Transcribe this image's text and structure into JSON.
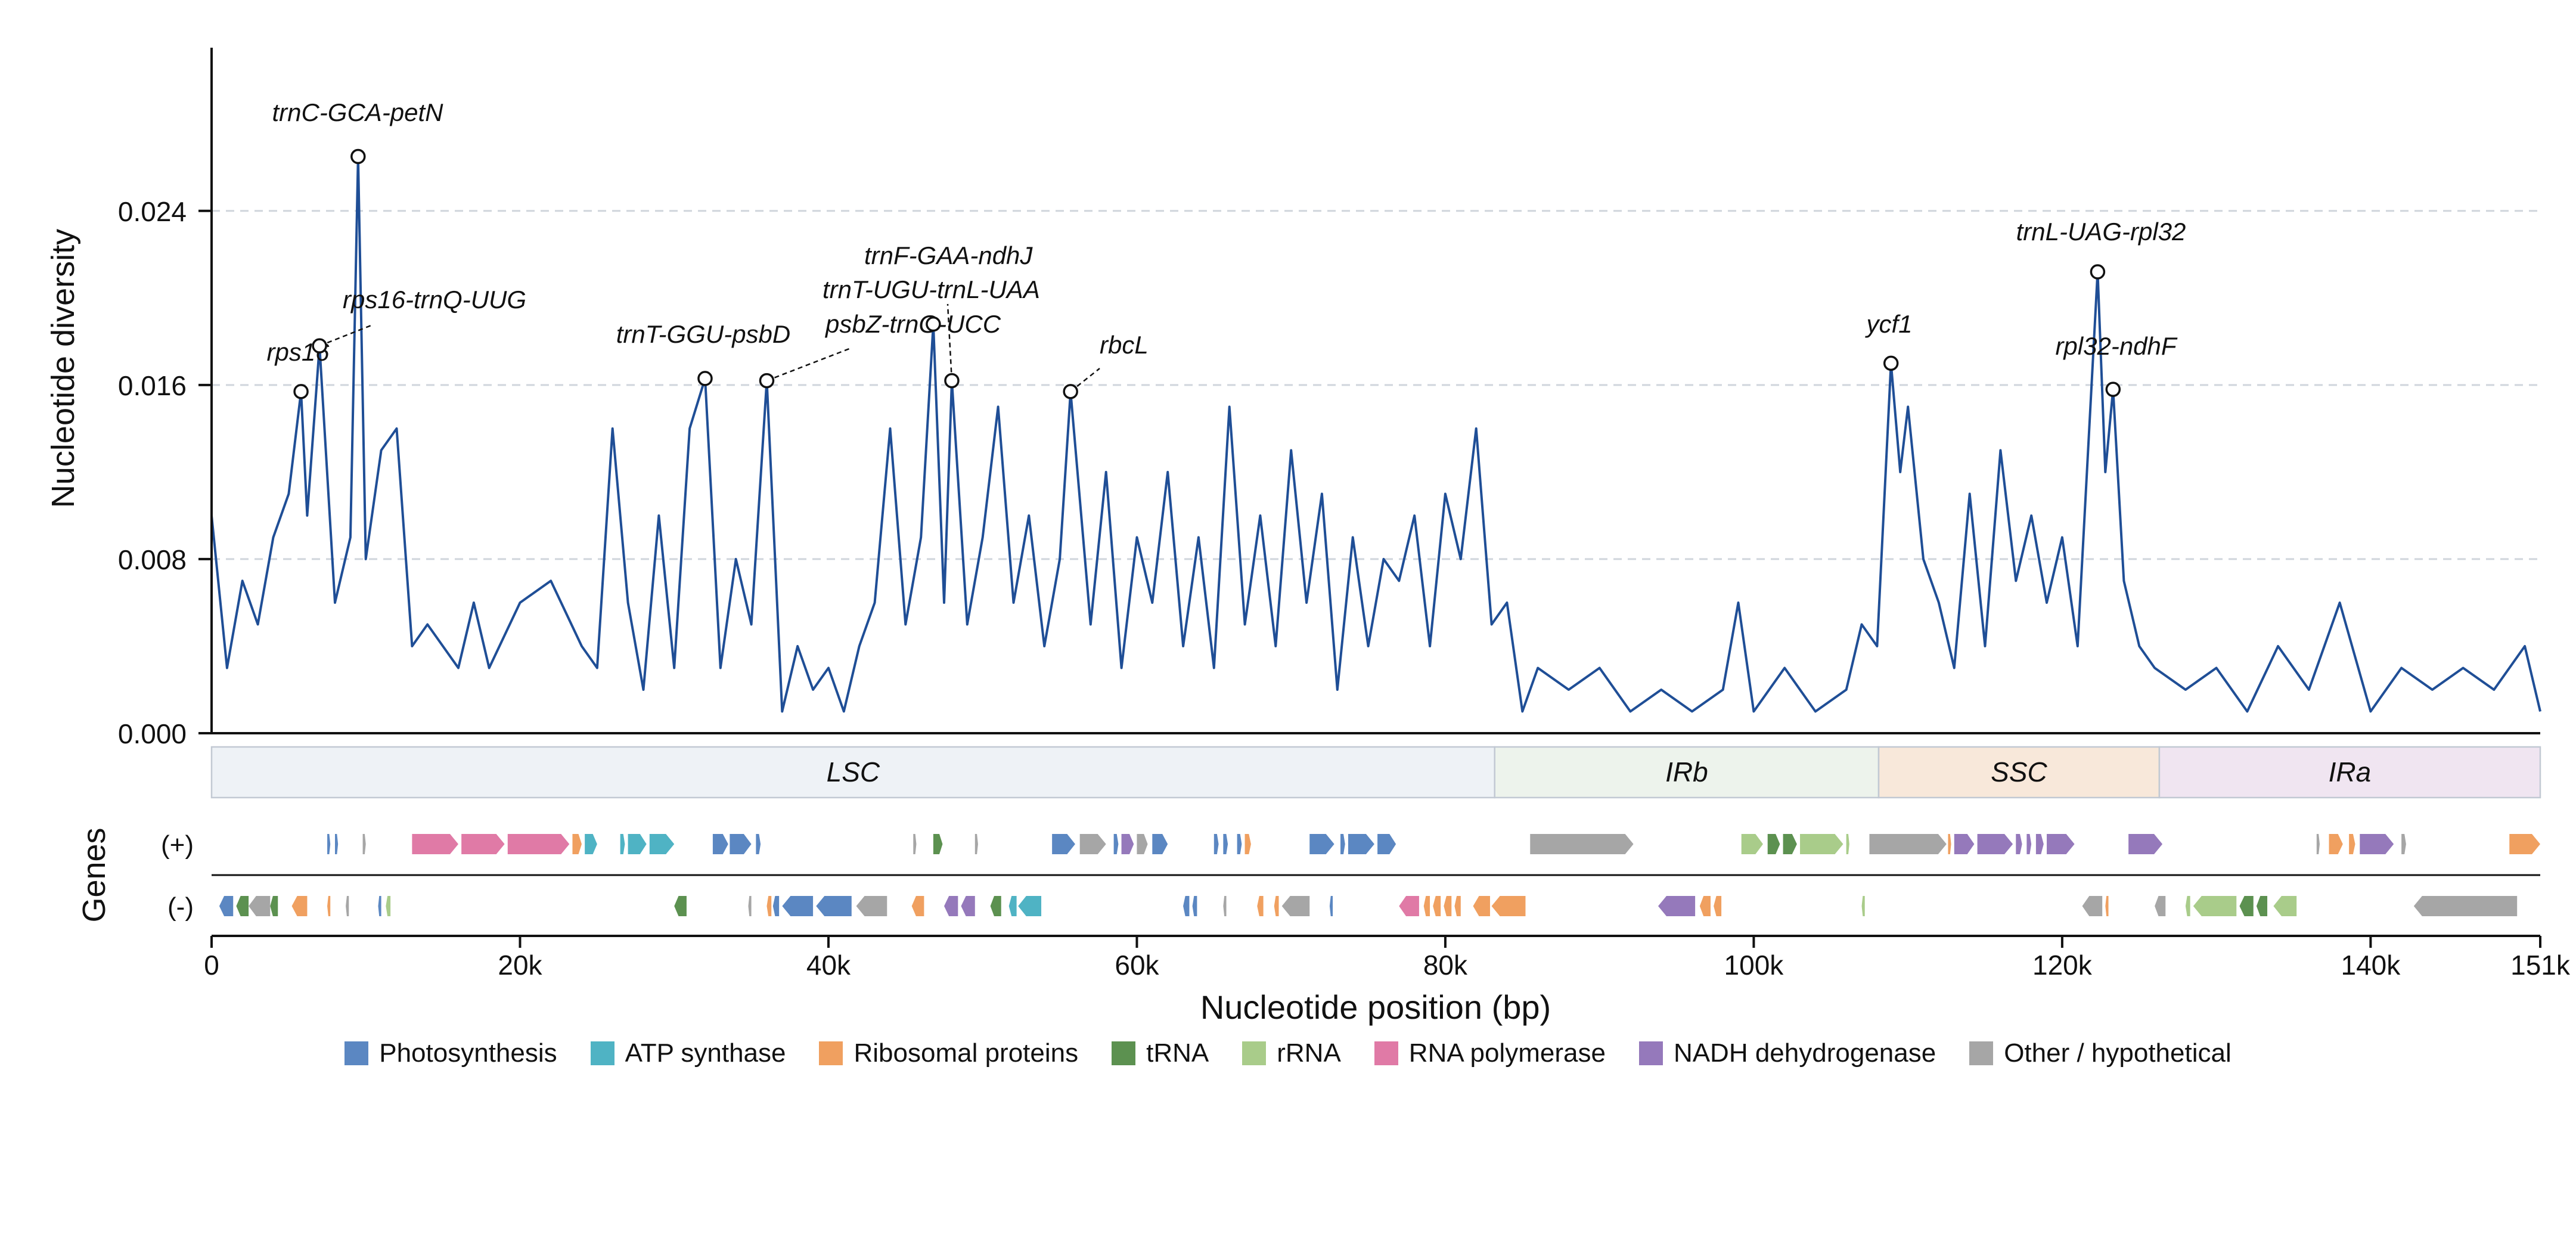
{
  "chart_data": {
    "type": "line",
    "ylabel": "Nucleotide diversity",
    "xlabel": "Nucleotide position (bp)",
    "genes_label": "Genes",
    "ylim": [
      0,
      0.0315
    ],
    "xlim": [
      0,
      151000
    ],
    "yticks": [
      0.0,
      0.008,
      0.016,
      0.024
    ],
    "ytick_labels": [
      "0.000",
      "0.008",
      "0.016",
      "0.024"
    ],
    "xticks": [
      0,
      20000,
      40000,
      60000,
      80000,
      100000,
      120000,
      140000,
      151000
    ],
    "xtick_labels": [
      "0",
      "20k",
      "40k",
      "60k",
      "80k",
      "100k",
      "120k",
      "140k",
      "151k"
    ],
    "grid": "horizontal dashed",
    "colors": {
      "line": "#1f4e96",
      "Photosynthesis": "#5b87c2",
      "ATP synthase": "#4fb3c4",
      "Ribosomal proteins": "#f0a060",
      "tRNA": "#5c9150",
      "rRNA": "#a9cc8a",
      "RNA polymerase": "#e07aa6",
      "NADH dehydrogenase": "#9579bb",
      "Other / hypothetical": "#a6a6a6"
    },
    "series": [
      {
        "name": "",
        "x": [
          0,
          1000,
          2000,
          3000,
          4000,
          5000,
          5800,
          6200,
          7000,
          8000,
          9000,
          9500,
          10000,
          11000,
          12000,
          13000,
          14000,
          16000,
          17000,
          18000,
          20000,
          22000,
          24000,
          25000,
          26000,
          27000,
          28000,
          29000,
          30000,
          31000,
          32000,
          33000,
          34000,
          35000,
          36000,
          37000,
          38000,
          39000,
          40000,
          41000,
          42000,
          43000,
          44000,
          45000,
          46000,
          46800,
          47500,
          48000,
          49000,
          50000,
          51000,
          52000,
          53000,
          54000,
          55000,
          55700,
          57000,
          58000,
          59000,
          60000,
          61000,
          62000,
          63000,
          64000,
          65000,
          66000,
          67000,
          68000,
          69000,
          70000,
          71000,
          72000,
          73000,
          74000,
          75000,
          76000,
          77000,
          78000,
          79000,
          80000,
          81000,
          82000,
          83000,
          84000,
          85000,
          86000,
          88000,
          90000,
          92000,
          94000,
          96000,
          98000,
          99000,
          100000,
          102000,
          104000,
          106000,
          107000,
          108000,
          108900,
          109500,
          110000,
          111000,
          112000,
          113000,
          114000,
          115000,
          116000,
          117000,
          118000,
          119000,
          120000,
          121000,
          122300,
          122800,
          123300,
          124000,
          125000,
          126000,
          128000,
          130000,
          132000,
          134000,
          136000,
          138000,
          140000,
          142000,
          144000,
          146000,
          148000,
          150000,
          151000
        ],
        "values": [
          0.01,
          0.003,
          0.007,
          0.005,
          0.009,
          0.011,
          0.0157,
          0.01,
          0.0178,
          0.006,
          0.009,
          0.0265,
          0.008,
          0.013,
          0.014,
          0.004,
          0.005,
          0.003,
          0.006,
          0.003,
          0.006,
          0.007,
          0.004,
          0.003,
          0.014,
          0.006,
          0.002,
          0.01,
          0.003,
          0.014,
          0.0163,
          0.003,
          0.008,
          0.005,
          0.0162,
          0.001,
          0.004,
          0.002,
          0.003,
          0.001,
          0.004,
          0.006,
          0.014,
          0.005,
          0.009,
          0.0188,
          0.006,
          0.0162,
          0.005,
          0.009,
          0.015,
          0.006,
          0.01,
          0.004,
          0.008,
          0.0157,
          0.005,
          0.012,
          0.003,
          0.009,
          0.006,
          0.012,
          0.004,
          0.009,
          0.003,
          0.015,
          0.005,
          0.01,
          0.004,
          0.013,
          0.006,
          0.011,
          0.002,
          0.009,
          0.004,
          0.008,
          0.007,
          0.01,
          0.004,
          0.011,
          0.008,
          0.014,
          0.005,
          0.006,
          0.001,
          0.003,
          0.002,
          0.003,
          0.001,
          0.002,
          0.001,
          0.002,
          0.006,
          0.001,
          0.003,
          0.001,
          0.002,
          0.005,
          0.004,
          0.017,
          0.012,
          0.015,
          0.008,
          0.006,
          0.003,
          0.011,
          0.004,
          0.013,
          0.007,
          0.01,
          0.006,
          0.009,
          0.004,
          0.0212,
          0.012,
          0.0158,
          0.007,
          0.004,
          0.003,
          0.002,
          0.003,
          0.001,
          0.004,
          0.002,
          0.006,
          0.001,
          0.003,
          0.002,
          0.003,
          0.002,
          0.004,
          0.001
        ]
      }
    ],
    "annotations": [
      {
        "label": "rps16",
        "x": 5800,
        "y": 0.0157
      },
      {
        "label": "rps16-trnQ-UUG",
        "x": 7000,
        "y": 0.0178
      },
      {
        "label": "trnC-GCA-petN",
        "x": 9500,
        "y": 0.0265
      },
      {
        "label": "trnT-GGU-psbD",
        "x": 32000,
        "y": 0.0163
      },
      {
        "label": "psbZ-trnG-UCC",
        "x": 36000,
        "y": 0.0162
      },
      {
        "label": "trnF-GAA-ndhJ",
        "x": 46800,
        "y": 0.0188
      },
      {
        "label": "trnT-UGU-trnL-UAA",
        "x": 48000,
        "y": 0.0162
      },
      {
        "label": "rbcL",
        "x": 55700,
        "y": 0.0157
      },
      {
        "label": "ycf1",
        "x": 108900,
        "y": 0.017
      },
      {
        "label": "trnL-UAG-rpl32",
        "x": 122300,
        "y": 0.0212
      },
      {
        "label": "rpl32-ndhF",
        "x": 123300,
        "y": 0.0158
      }
    ],
    "regions": [
      {
        "label": "LSC",
        "start": 0,
        "end": 83200,
        "color": "#eef2f6"
      },
      {
        "label": "IRb",
        "start": 83200,
        "end": 108100,
        "color": "#edf3ec"
      },
      {
        "label": "SSC",
        "start": 108100,
        "end": 126300,
        "color": "#f8e8da"
      },
      {
        "label": "IRa",
        "start": 126300,
        "end": 151000,
        "color": "#f0e5f1"
      }
    ],
    "strand_labels": [
      "(+)",
      "(-)"
    ],
    "genes_plus": [
      {
        "start": 7500,
        "end": 7700,
        "cat": "Photosynthesis"
      },
      {
        "start": 8000,
        "end": 8200,
        "cat": "Photosynthesis"
      },
      {
        "start": 9800,
        "end": 10000,
        "cat": "Other / hypothetical"
      },
      {
        "start": 13000,
        "end": 16000,
        "cat": "RNA polymerase"
      },
      {
        "start": 16200,
        "end": 19000,
        "cat": "RNA polymerase"
      },
      {
        "start": 19200,
        "end": 23200,
        "cat": "RNA polymerase"
      },
      {
        "start": 23400,
        "end": 24000,
        "cat": "Ribosomal proteins"
      },
      {
        "start": 24200,
        "end": 25000,
        "cat": "ATP synthase"
      },
      {
        "start": 26500,
        "end": 26800,
        "cat": "ATP synthase"
      },
      {
        "start": 27000,
        "end": 28200,
        "cat": "ATP synthase"
      },
      {
        "start": 28400,
        "end": 30000,
        "cat": "ATP synthase"
      },
      {
        "start": 32500,
        "end": 33500,
        "cat": "Photosynthesis"
      },
      {
        "start": 33600,
        "end": 35000,
        "cat": "Photosynthesis"
      },
      {
        "start": 35300,
        "end": 35600,
        "cat": "Photosynthesis"
      },
      {
        "start": 45500,
        "end": 45700,
        "cat": "Other / hypothetical"
      },
      {
        "start": 46800,
        "end": 47400,
        "cat": "tRNA"
      },
      {
        "start": 49500,
        "end": 49700,
        "cat": "Other / hypothetical"
      },
      {
        "start": 54500,
        "end": 56000,
        "cat": "Photosynthesis"
      },
      {
        "start": 56300,
        "end": 58000,
        "cat": "Other / hypothetical"
      },
      {
        "start": 58500,
        "end": 58800,
        "cat": "Photosynthesis"
      },
      {
        "start": 59000,
        "end": 59800,
        "cat": "NADH dehydrogenase"
      },
      {
        "start": 60000,
        "end": 60700,
        "cat": "Other / hypothetical"
      },
      {
        "start": 61000,
        "end": 62000,
        "cat": "Photosynthesis"
      },
      {
        "start": 65000,
        "end": 65300,
        "cat": "Photosynthesis"
      },
      {
        "start": 65600,
        "end": 65900,
        "cat": "Photosynthesis"
      },
      {
        "start": 66500,
        "end": 66800,
        "cat": "Photosynthesis"
      },
      {
        "start": 67000,
        "end": 67400,
        "cat": "Ribosomal proteins"
      },
      {
        "start": 71200,
        "end": 72800,
        "cat": "Photosynthesis"
      },
      {
        "start": 73200,
        "end": 73500,
        "cat": "Photosynthesis"
      },
      {
        "start": 73700,
        "end": 75400,
        "cat": "Photosynthesis"
      },
      {
        "start": 75600,
        "end": 76800,
        "cat": "Photosynthesis"
      },
      {
        "start": 85500,
        "end": 92200,
        "cat": "Other / hypothetical"
      },
      {
        "start": 99200,
        "end": 100600,
        "cat": "rRNA"
      },
      {
        "start": 100900,
        "end": 101700,
        "cat": "tRNA"
      },
      {
        "start": 101900,
        "end": 102800,
        "cat": "tRNA"
      },
      {
        "start": 103000,
        "end": 105800,
        "cat": "rRNA"
      },
      {
        "start": 106000,
        "end": 106200,
        "cat": "rRNA"
      },
      {
        "start": 107500,
        "end": 112500,
        "cat": "Other / hypothetical"
      },
      {
        "start": 112600,
        "end": 112800,
        "cat": "Ribosomal proteins"
      },
      {
        "start": 113000,
        "end": 114300,
        "cat": "NADH dehydrogenase"
      },
      {
        "start": 114500,
        "end": 116800,
        "cat": "NADH dehydrogenase"
      },
      {
        "start": 117000,
        "end": 117400,
        "cat": "NADH dehydrogenase"
      },
      {
        "start": 117700,
        "end": 118000,
        "cat": "NADH dehydrogenase"
      },
      {
        "start": 118300,
        "end": 118800,
        "cat": "NADH dehydrogenase"
      },
      {
        "start": 119000,
        "end": 120800,
        "cat": "NADH dehydrogenase"
      },
      {
        "start": 124300,
        "end": 126500,
        "cat": "NADH dehydrogenase"
      },
      {
        "start": 136500,
        "end": 136700,
        "cat": "Other / hypothetical"
      },
      {
        "start": 137300,
        "end": 138200,
        "cat": "Ribosomal proteins"
      },
      {
        "start": 138600,
        "end": 139000,
        "cat": "Ribosomal proteins"
      },
      {
        "start": 139300,
        "end": 141500,
        "cat": "NADH dehydrogenase"
      },
      {
        "start": 142000,
        "end": 142300,
        "cat": "Other / hypothetical"
      },
      {
        "start": 149000,
        "end": 151000,
        "cat": "Ribosomal proteins"
      }
    ],
    "genes_minus": [
      {
        "start": 500,
        "end": 1400,
        "cat": "Photosynthesis"
      },
      {
        "start": 1600,
        "end": 2400,
        "cat": "tRNA"
      },
      {
        "start": 2400,
        "end": 3800,
        "cat": "Other / hypothetical"
      },
      {
        "start": 3800,
        "end": 4300,
        "cat": "tRNA"
      },
      {
        "start": 5200,
        "end": 6200,
        "cat": "Ribosomal proteins"
      },
      {
        "start": 7500,
        "end": 7700,
        "cat": "Ribosomal proteins"
      },
      {
        "start": 8700,
        "end": 8900,
        "cat": "Other / hypothetical"
      },
      {
        "start": 10800,
        "end": 11000,
        "cat": "Photosynthesis"
      },
      {
        "start": 11300,
        "end": 11600,
        "cat": "rRNA"
      },
      {
        "start": 30000,
        "end": 30800,
        "cat": "tRNA"
      },
      {
        "start": 34800,
        "end": 35000,
        "cat": "Other / hypothetical"
      },
      {
        "start": 36000,
        "end": 36300,
        "cat": "Ribosomal proteins"
      },
      {
        "start": 36400,
        "end": 36800,
        "cat": "Photosynthesis"
      },
      {
        "start": 37000,
        "end": 39000,
        "cat": "Photosynthesis"
      },
      {
        "start": 39200,
        "end": 41500,
        "cat": "Photosynthesis"
      },
      {
        "start": 41800,
        "end": 43800,
        "cat": "Other / hypothetical"
      },
      {
        "start": 45400,
        "end": 46200,
        "cat": "Ribosomal proteins"
      },
      {
        "start": 47500,
        "end": 48400,
        "cat": "NADH dehydrogenase"
      },
      {
        "start": 48600,
        "end": 49500,
        "cat": "NADH dehydrogenase"
      },
      {
        "start": 50500,
        "end": 51200,
        "cat": "tRNA"
      },
      {
        "start": 51700,
        "end": 52200,
        "cat": "ATP synthase"
      },
      {
        "start": 52300,
        "end": 53800,
        "cat": "ATP synthase"
      },
      {
        "start": 63000,
        "end": 63400,
        "cat": "Photosynthesis"
      },
      {
        "start": 63600,
        "end": 63900,
        "cat": "Photosynthesis"
      },
      {
        "start": 65600,
        "end": 65800,
        "cat": "Other / hypothetical"
      },
      {
        "start": 67800,
        "end": 68200,
        "cat": "Ribosomal proteins"
      },
      {
        "start": 68900,
        "end": 69200,
        "cat": "Ribosomal proteins"
      },
      {
        "start": 69400,
        "end": 71200,
        "cat": "Other / hypothetical"
      },
      {
        "start": 72500,
        "end": 72700,
        "cat": "Photosynthesis"
      },
      {
        "start": 77000,
        "end": 78300,
        "cat": "RNA polymerase"
      },
      {
        "start": 78600,
        "end": 79000,
        "cat": "Ribosomal proteins"
      },
      {
        "start": 79200,
        "end": 79700,
        "cat": "Ribosomal proteins"
      },
      {
        "start": 79900,
        "end": 80400,
        "cat": "Ribosomal proteins"
      },
      {
        "start": 80600,
        "end": 81000,
        "cat": "Ribosomal proteins"
      },
      {
        "start": 81800,
        "end": 82900,
        "cat": "Ribosomal proteins"
      },
      {
        "start": 83000,
        "end": 85200,
        "cat": "Ribosomal proteins"
      },
      {
        "start": 93800,
        "end": 96200,
        "cat": "NADH dehydrogenase"
      },
      {
        "start": 96500,
        "end": 97200,
        "cat": "Ribosomal proteins"
      },
      {
        "start": 97400,
        "end": 97900,
        "cat": "Ribosomal proteins"
      },
      {
        "start": 107000,
        "end": 107200,
        "cat": "rRNA"
      },
      {
        "start": 121300,
        "end": 122600,
        "cat": "Other / hypothetical"
      },
      {
        "start": 122800,
        "end": 123000,
        "cat": "Ribosomal proteins"
      },
      {
        "start": 126000,
        "end": 126700,
        "cat": "Other / hypothetical"
      },
      {
        "start": 128000,
        "end": 128300,
        "cat": "rRNA"
      },
      {
        "start": 128500,
        "end": 131300,
        "cat": "rRNA"
      },
      {
        "start": 131500,
        "end": 132400,
        "cat": "tRNA"
      },
      {
        "start": 132600,
        "end": 133300,
        "cat": "tRNA"
      },
      {
        "start": 133700,
        "end": 135200,
        "cat": "rRNA"
      },
      {
        "start": 142800,
        "end": 149500,
        "cat": "Other / hypothetical"
      }
    ],
    "legend": [
      "Photosynthesis",
      "ATP synthase",
      "Ribosomal proteins",
      "tRNA",
      "rRNA",
      "RNA polymerase",
      "NADH dehydrogenase",
      "Other / hypothetical"
    ]
  }
}
